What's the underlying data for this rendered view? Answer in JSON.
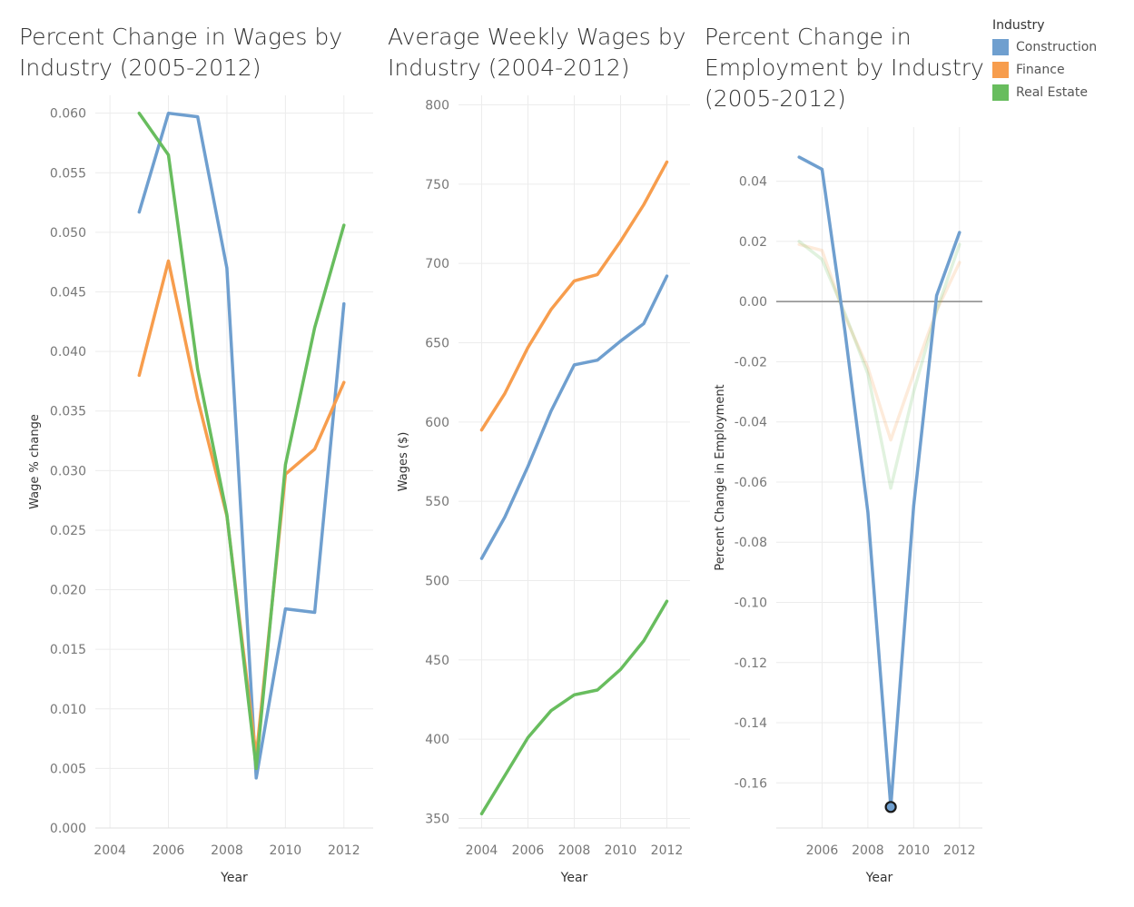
{
  "colors": {
    "Construction": "#6f9fcf",
    "Finance": "#f79d4d",
    "Real Estate": "#68bd5e"
  },
  "legend": {
    "title": "Industry",
    "items": [
      {
        "name": "Construction",
        "color": "#6f9fcf"
      },
      {
        "name": "Finance",
        "color": "#f79d4d"
      },
      {
        "name": "Real Estate",
        "color": "#68bd5e"
      }
    ]
  },
  "chart_data": [
    {
      "type": "line",
      "title": "Percent Change in Wages by\nIndustry (2005-2012)",
      "xlabel": "Year",
      "ylabel": "Wage % change",
      "xlim": [
        2003.5,
        2013
      ],
      "ylim": [
        0,
        0.0615
      ],
      "xticks": [
        "2004",
        "2006",
        "2008",
        "2010",
        "2012"
      ],
      "yticks": [
        "0.000",
        "0.005",
        "0.010",
        "0.015",
        "0.020",
        "0.025",
        "0.030",
        "0.035",
        "0.040",
        "0.045",
        "0.050",
        "0.055",
        "0.060"
      ],
      "grid": true,
      "series": [
        {
          "name": "Construction",
          "x": [
            2005,
            2006,
            2007,
            2008,
            2009,
            2010,
            2011,
            2012
          ],
          "y": [
            0.0517,
            0.06,
            0.0597,
            0.047,
            0.0042,
            0.0184,
            0.0181,
            0.044
          ]
        },
        {
          "name": "Finance",
          "x": [
            2005,
            2006,
            2007,
            2008,
            2009,
            2010,
            2011,
            2012
          ],
          "y": [
            0.038,
            0.0476,
            0.036,
            0.0262,
            0.006,
            0.0297,
            0.0318,
            0.0374
          ]
        },
        {
          "name": "Real Estate",
          "x": [
            2005,
            2006,
            2007,
            2008,
            2009,
            2010,
            2011,
            2012
          ],
          "y": [
            0.06,
            0.0565,
            0.0385,
            0.0263,
            0.005,
            0.0305,
            0.042,
            0.0506
          ]
        }
      ]
    },
    {
      "type": "line",
      "title": "Average Weekly Wages by\nIndustry (2004-2012)",
      "xlabel": "Year",
      "ylabel": "Wages ($)",
      "xlim": [
        2003,
        2013
      ],
      "ylim": [
        344,
        806
      ],
      "xticks": [
        "2004",
        "2006",
        "2008",
        "2010",
        "2012"
      ],
      "yticks": [
        "350",
        "400",
        "450",
        "500",
        "550",
        "600",
        "650",
        "700",
        "750",
        "800"
      ],
      "grid": true,
      "series": [
        {
          "name": "Construction",
          "x": [
            2004,
            2005,
            2006,
            2007,
            2008,
            2009,
            2010,
            2011,
            2012
          ],
          "y": [
            514,
            540,
            572,
            607,
            636,
            639,
            651,
            662,
            692
          ]
        },
        {
          "name": "Finance",
          "x": [
            2004,
            2005,
            2006,
            2007,
            2008,
            2009,
            2010,
            2011,
            2012
          ],
          "y": [
            595,
            618,
            647,
            671,
            689,
            693,
            714,
            737,
            764
          ]
        },
        {
          "name": "Real Estate",
          "x": [
            2004,
            2005,
            2006,
            2007,
            2008,
            2009,
            2010,
            2011,
            2012
          ],
          "y": [
            353,
            377,
            401,
            418,
            428,
            431,
            444,
            462,
            487
          ]
        }
      ]
    },
    {
      "type": "line",
      "title": "Percent Change in\nEmployment by Industry\n(2005-2012)",
      "xlabel": "Year",
      "ylabel": "Percent Change in Employment",
      "xlim": [
        2004,
        2013
      ],
      "ylim": [
        -0.175,
        0.058
      ],
      "xticks": [
        "2006",
        "2008",
        "2010",
        "2012"
      ],
      "yticks": [
        "0.04",
        "0.02",
        "0.00",
        "-0.02",
        "-0.04",
        "-0.06",
        "-0.08",
        "-0.10",
        "-0.12",
        "-0.14",
        "-0.16"
      ],
      "grid": true,
      "reference_line": 0,
      "highlighted_series": "Construction",
      "highlighted_point": {
        "series": "Construction",
        "x": 2009,
        "y": -0.168
      },
      "series": [
        {
          "name": "Construction",
          "x": [
            2005,
            2006,
            2007,
            2008,
            2009,
            2010,
            2011,
            2012
          ],
          "y": [
            0.048,
            0.044,
            -0.01,
            -0.07,
            -0.168,
            -0.068,
            0.002,
            0.023
          ]
        },
        {
          "name": "Finance",
          "x": [
            2005,
            2006,
            2007,
            2008,
            2009,
            2010,
            2011,
            2012
          ],
          "y": [
            0.019,
            0.017,
            -0.005,
            -0.022,
            -0.046,
            -0.024,
            -0.003,
            0.013
          ]
        },
        {
          "name": "Real Estate",
          "x": [
            2005,
            2006,
            2007,
            2008,
            2009,
            2010,
            2011,
            2012
          ],
          "y": [
            0.02,
            0.014,
            -0.004,
            -0.024,
            -0.062,
            -0.03,
            -0.003,
            0.019
          ]
        }
      ]
    }
  ]
}
